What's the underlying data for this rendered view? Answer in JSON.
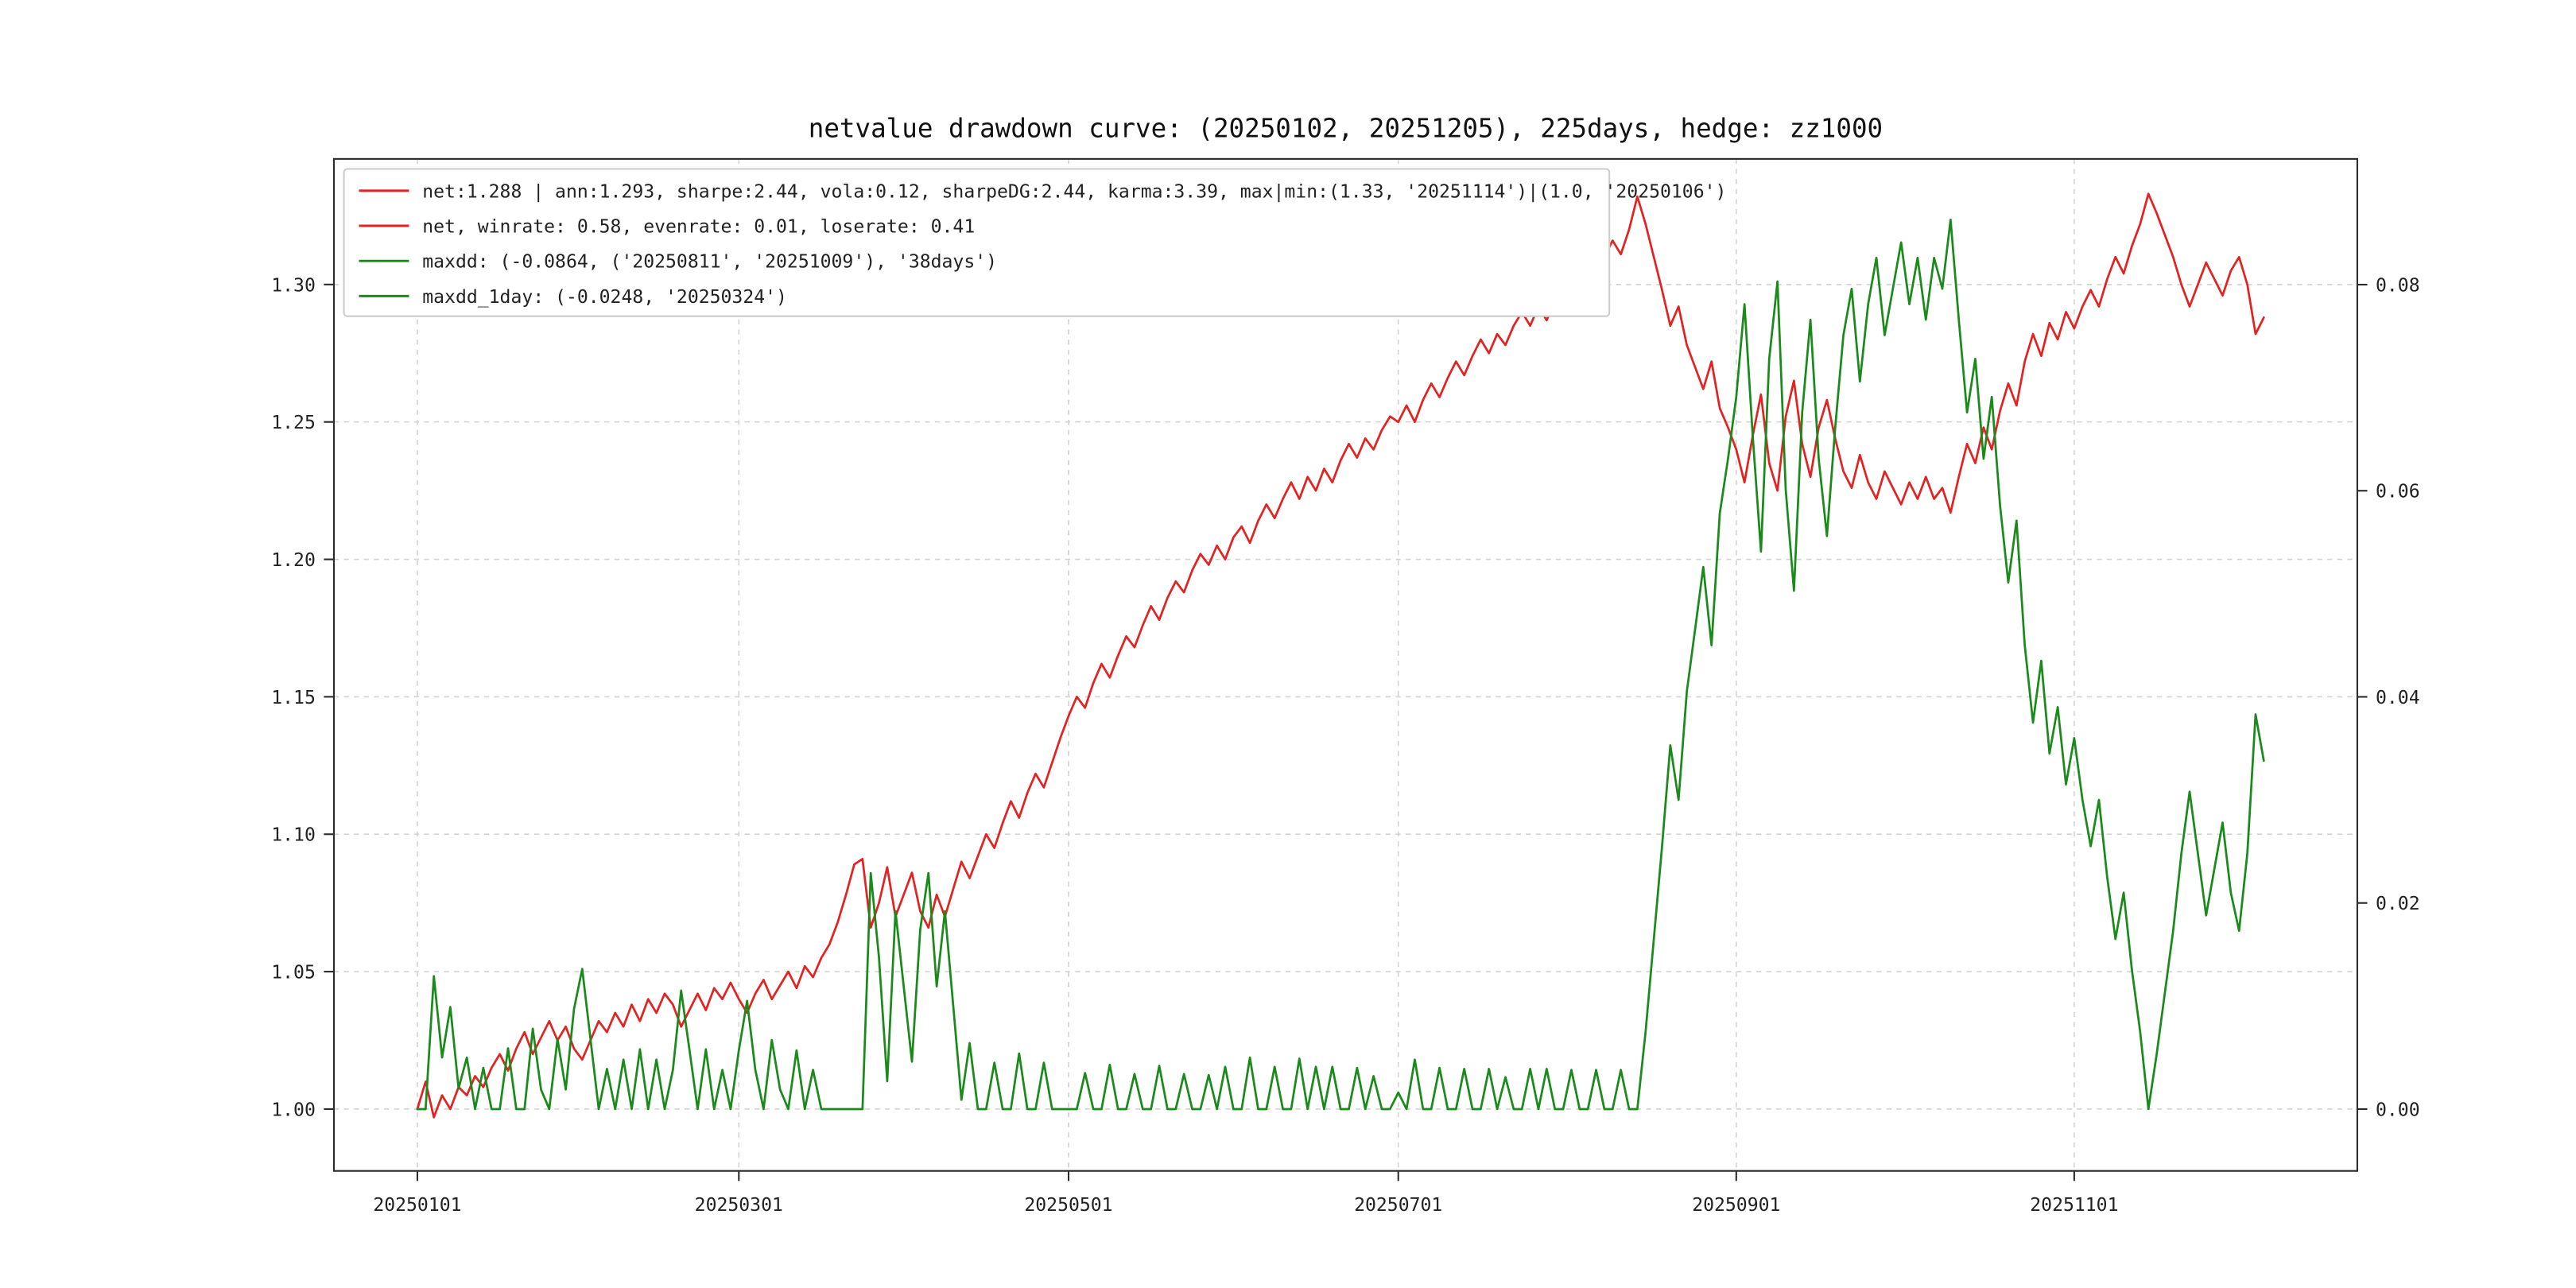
{
  "page": {
    "background": "#ffffff"
  },
  "chart_data": {
    "type": "line",
    "title": "netvalue drawdown curve: (20250102, 20251205), 225days, hedge: zz1000",
    "legend_position": "upper-left",
    "grid": true,
    "colors": {
      "net_line": "#e32222",
      "drawdown_line": "#1a8a1a",
      "grid_line": "#d4d4d4",
      "spine": "#2b2b2b",
      "text": "#222222",
      "legend_border": "#cccccc",
      "legend_fill": "#ffffff"
    },
    "legend": [
      {
        "series": "net-stats",
        "color": "#e32222",
        "label": "net:1.288 | ann:1.293, sharpe:2.44, vola:0.12, sharpeDG:2.44, karma:3.39, max|min:(1.33, '20251114')|(1.0, '20250106')"
      },
      {
        "series": "net-rates",
        "color": "#e32222",
        "label": "net, winrate: 0.58, evenrate: 0.01, loserate: 0.41"
      },
      {
        "series": "maxdd",
        "color": "#1a8a1a",
        "label": "maxdd: (-0.0864, ('20250811', '20251009'), '38days')"
      },
      {
        "series": "maxdd-1day",
        "color": "#1a8a1a",
        "label": "maxdd_1day: (-0.0248, '20250324')"
      }
    ],
    "x_axis": {
      "point_count": 225,
      "tick_labels": [
        "20250101",
        "20250301",
        "20250501",
        "20250701",
        "20250901",
        "20251101"
      ],
      "tick_indices": [
        0,
        39,
        79,
        119,
        160,
        201
      ]
    },
    "left_axis": {
      "tick_labels": [
        "1.00",
        "1.05",
        "1.10",
        "1.15",
        "1.20",
        "1.25",
        "1.30"
      ],
      "tick_values": [
        1.0,
        1.05,
        1.1,
        1.15,
        1.2,
        1.25,
        1.3
      ],
      "lim": [
        0.9775,
        1.3457
      ]
    },
    "right_axis": {
      "tick_labels": [
        "0.00",
        "0.02",
        "0.04",
        "0.06",
        "0.08"
      ],
      "tick_values": [
        0.0,
        0.02,
        0.04,
        0.06,
        0.08
      ],
      "lim": [
        -0.006,
        0.0922
      ]
    },
    "series": [
      {
        "name": "net",
        "axis": "left",
        "color": "#e32222",
        "values": [
          1.0,
          1.01,
          0.997,
          1.005,
          1.0,
          1.008,
          1.005,
          1.012,
          1.008,
          1.015,
          1.02,
          1.014,
          1.022,
          1.028,
          1.02,
          1.026,
          1.032,
          1.025,
          1.03,
          1.022,
          1.018,
          1.025,
          1.032,
          1.028,
          1.035,
          1.03,
          1.038,
          1.032,
          1.04,
          1.035,
          1.042,
          1.038,
          1.03,
          1.036,
          1.042,
          1.036,
          1.044,
          1.04,
          1.046,
          1.04,
          1.035,
          1.042,
          1.047,
          1.04,
          1.045,
          1.05,
          1.044,
          1.052,
          1.048,
          1.055,
          1.06,
          1.068,
          1.078,
          1.089,
          1.091,
          1.066,
          1.075,
          1.088,
          1.07,
          1.078,
          1.086,
          1.072,
          1.066,
          1.078,
          1.07,
          1.08,
          1.09,
          1.084,
          1.092,
          1.1,
          1.095,
          1.104,
          1.112,
          1.106,
          1.115,
          1.122,
          1.117,
          1.126,
          1.135,
          1.143,
          1.15,
          1.146,
          1.155,
          1.162,
          1.157,
          1.165,
          1.172,
          1.168,
          1.176,
          1.183,
          1.178,
          1.186,
          1.192,
          1.188,
          1.196,
          1.202,
          1.198,
          1.205,
          1.2,
          1.208,
          1.212,
          1.206,
          1.214,
          1.22,
          1.215,
          1.222,
          1.228,
          1.222,
          1.23,
          1.225,
          1.233,
          1.228,
          1.236,
          1.242,
          1.237,
          1.244,
          1.24,
          1.247,
          1.252,
          1.25,
          1.256,
          1.25,
          1.258,
          1.264,
          1.259,
          1.266,
          1.272,
          1.267,
          1.274,
          1.28,
          1.275,
          1.282,
          1.278,
          1.285,
          1.29,
          1.285,
          1.292,
          1.287,
          1.294,
          1.3,
          1.295,
          1.302,
          1.308,
          1.303,
          1.31,
          1.316,
          1.311,
          1.32,
          1.332,
          1.322,
          1.31,
          1.298,
          1.285,
          1.292,
          1.278,
          1.27,
          1.262,
          1.272,
          1.255,
          1.248,
          1.24,
          1.228,
          1.245,
          1.26,
          1.235,
          1.225,
          1.252,
          1.265,
          1.242,
          1.23,
          1.248,
          1.258,
          1.244,
          1.232,
          1.226,
          1.238,
          1.228,
          1.222,
          1.232,
          1.226,
          1.22,
          1.228,
          1.222,
          1.23,
          1.222,
          1.226,
          1.217,
          1.23,
          1.242,
          1.235,
          1.248,
          1.24,
          1.254,
          1.264,
          1.256,
          1.272,
          1.282,
          1.274,
          1.286,
          1.28,
          1.29,
          1.284,
          1.292,
          1.298,
          1.292,
          1.302,
          1.31,
          1.304,
          1.314,
          1.322,
          1.333,
          1.326,
          1.318,
          1.31,
          1.3,
          1.292,
          1.3,
          1.308,
          1.302,
          1.296,
          1.305,
          1.31,
          1.3,
          1.282,
          1.288
        ]
      },
      {
        "name": "drawdown",
        "axis": "right",
        "color": "#1a8a1a",
        "values": [
          0.0,
          0.0,
          0.0129,
          0.005,
          0.0099,
          0.002,
          0.005,
          0.0,
          0.004,
          0.0,
          0.0,
          0.0059,
          0.0,
          0.0,
          0.0078,
          0.0019,
          0.0,
          0.0068,
          0.0019,
          0.0097,
          0.0136,
          0.0068,
          0.0,
          0.0039,
          0.0,
          0.0048,
          0.0,
          0.0058,
          0.0,
          0.0048,
          0.0,
          0.0038,
          0.0115,
          0.0058,
          0.0,
          0.0058,
          0.0,
          0.0038,
          0.0,
          0.0057,
          0.0105,
          0.0038,
          0.0,
          0.0067,
          0.0019,
          0.0,
          0.0057,
          0.0,
          0.0038,
          0.0,
          0.0,
          0.0,
          0.0,
          0.0,
          0.0,
          0.0229,
          0.0147,
          0.0027,
          0.0192,
          0.0119,
          0.0046,
          0.0174,
          0.0229,
          0.0119,
          0.0192,
          0.0101,
          0.0009,
          0.0064,
          0.0,
          0.0,
          0.0045,
          0.0,
          0.0,
          0.0054,
          0.0,
          0.0,
          0.0045,
          0.0,
          0.0,
          0.0,
          0.0,
          0.0035,
          0.0,
          0.0,
          0.0043,
          0.0,
          0.0,
          0.0034,
          0.0,
          0.0,
          0.0042,
          0.0,
          0.0,
          0.0034,
          0.0,
          0.0,
          0.0033,
          0.0,
          0.0041,
          0.0,
          0.0,
          0.005,
          0.0,
          0.0,
          0.0041,
          0.0,
          0.0,
          0.0049,
          0.0,
          0.0041,
          0.0,
          0.0041,
          0.0,
          0.0,
          0.004,
          0.0,
          0.0032,
          0.0,
          0.0,
          0.0016,
          0.0,
          0.0048,
          0.0,
          0.0,
          0.004,
          0.0,
          0.0,
          0.0039,
          0.0,
          0.0,
          0.0039,
          0.0,
          0.0031,
          0.0,
          0.0,
          0.0039,
          0.0,
          0.0039,
          0.0,
          0.0,
          0.0038,
          0.0,
          0.0,
          0.0038,
          0.0,
          0.0,
          0.0038,
          0.0,
          0.0,
          0.0075,
          0.0165,
          0.0255,
          0.0353,
          0.03,
          0.0405,
          0.0465,
          0.0526,
          0.045,
          0.0578,
          0.0631,
          0.0691,
          0.0781,
          0.0653,
          0.0541,
          0.0728,
          0.0803,
          0.0601,
          0.0503,
          0.0676,
          0.0766,
          0.0631,
          0.0556,
          0.0661,
          0.0751,
          0.0796,
          0.0706,
          0.0781,
          0.0826,
          0.0751,
          0.0796,
          0.0841,
          0.0781,
          0.0826,
          0.0766,
          0.0826,
          0.0796,
          0.0863,
          0.0766,
          0.0676,
          0.0728,
          0.0631,
          0.0691,
          0.0586,
          0.0511,
          0.0571,
          0.045,
          0.0375,
          0.0435,
          0.0345,
          0.039,
          0.0315,
          0.036,
          0.03,
          0.0255,
          0.03,
          0.0225,
          0.0165,
          0.021,
          0.0135,
          0.0075,
          0.0,
          0.0053,
          0.0113,
          0.0173,
          0.0248,
          0.0308,
          0.0248,
          0.0188,
          0.0233,
          0.0278,
          0.021,
          0.0173,
          0.0248,
          0.0383,
          0.0338
        ]
      }
    ]
  }
}
